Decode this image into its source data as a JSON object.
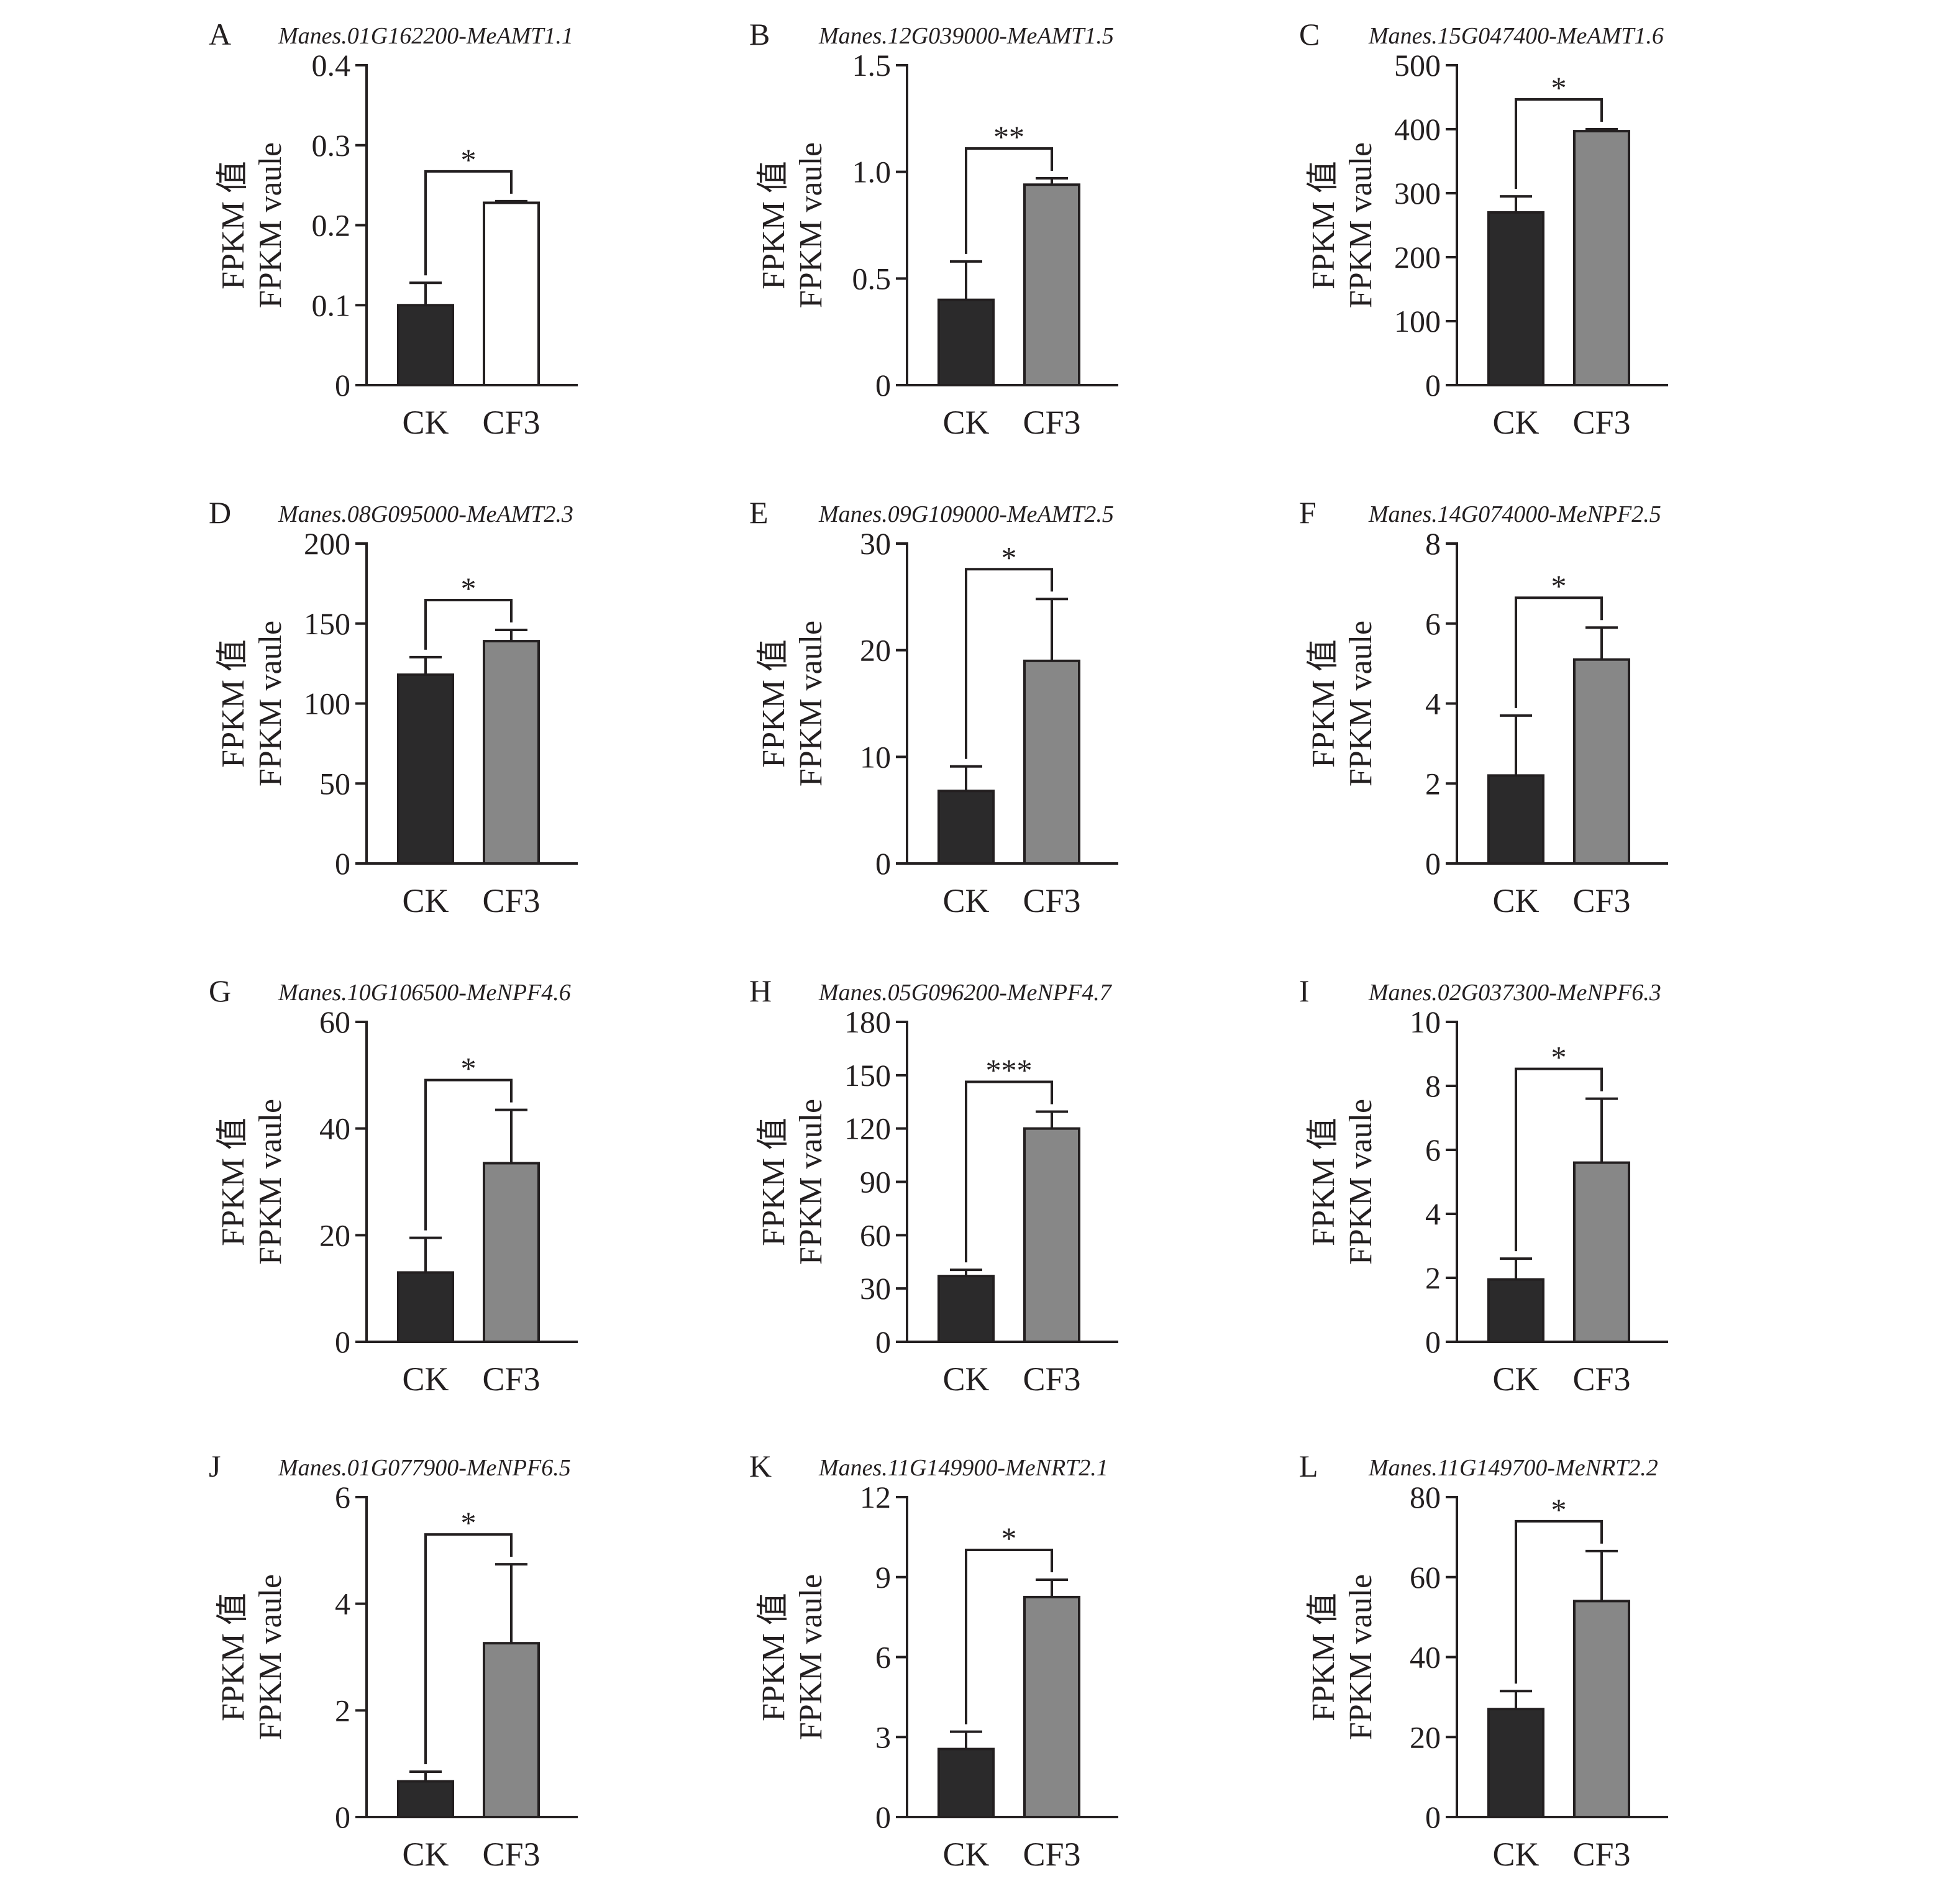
{
  "figure": {
    "y_label_line1": "FPKM 值",
    "y_label_line2": "FPKM vaule",
    "colors": {
      "ck": "#2b2a2b",
      "cf3": "#878787",
      "cf3_panel_a": "#ffffff",
      "axis": "#231f20"
    }
  },
  "chart_data": [
    {
      "panel": "A",
      "title": "Manes.01G162200-MeAMT1.1",
      "type": "bar",
      "categories": [
        "CK",
        "CF3"
      ],
      "values": [
        0.1,
        0.228
      ],
      "errors": [
        0.028,
        0.002
      ],
      "ylim": [
        0,
        0.4
      ],
      "yticks": [
        0,
        0.1,
        0.2,
        0.3,
        0.4
      ],
      "ytick_labels": [
        "0",
        "0.1",
        "0.2",
        "0.3",
        "0.4"
      ],
      "significance": "*"
    },
    {
      "panel": "B",
      "title": "Manes.12G039000-MeAMT1.5",
      "type": "bar",
      "categories": [
        "CK",
        "CF3"
      ],
      "values": [
        0.4,
        0.94
      ],
      "errors": [
        0.18,
        0.03
      ],
      "ylim": [
        0,
        1.5
      ],
      "yticks": [
        0,
        0.5,
        1.0,
        1.5
      ],
      "ytick_labels": [
        "0",
        "0.5",
        "1.0",
        "1.5"
      ],
      "significance": "**"
    },
    {
      "panel": "C",
      "title": "Manes.15G047400-MeAMT1.6",
      "type": "bar",
      "categories": [
        "CK",
        "CF3"
      ],
      "values": [
        270,
        397
      ],
      "errors": [
        25,
        3
      ],
      "ylim": [
        0,
        500
      ],
      "yticks": [
        0,
        100,
        200,
        300,
        400,
        500
      ],
      "ytick_labels": [
        "0",
        "100",
        "200",
        "300",
        "400",
        "500"
      ],
      "significance": "*"
    },
    {
      "panel": "D",
      "title": "Manes.08G095000-MeAMT2.3",
      "type": "bar",
      "categories": [
        "CK",
        "CF3"
      ],
      "values": [
        118,
        139
      ],
      "errors": [
        11,
        7
      ],
      "ylim": [
        0,
        200
      ],
      "yticks": [
        0,
        50,
        100,
        150,
        200
      ],
      "ytick_labels": [
        "0",
        "50",
        "100",
        "150",
        "200"
      ],
      "significance": "*"
    },
    {
      "panel": "E",
      "title": "Manes.09G109000-MeAMT2.5",
      "type": "bar",
      "categories": [
        "CK",
        "CF3"
      ],
      "values": [
        6.8,
        19
      ],
      "errors": [
        2.3,
        5.8
      ],
      "ylim": [
        0,
        30
      ],
      "yticks": [
        0,
        10,
        20,
        30
      ],
      "ytick_labels": [
        "0",
        "10",
        "20",
        "30"
      ],
      "significance": "*"
    },
    {
      "panel": "F",
      "title": "Manes.14G074000-MeNPF2.5",
      "type": "bar",
      "categories": [
        "CK",
        "CF3"
      ],
      "values": [
        2.2,
        5.1
      ],
      "errors": [
        1.5,
        0.8
      ],
      "ylim": [
        0,
        8
      ],
      "yticks": [
        0,
        2,
        4,
        6,
        8
      ],
      "ytick_labels": [
        "0",
        "2",
        "4",
        "6",
        "8"
      ],
      "significance": "*"
    },
    {
      "panel": "G",
      "title": "Manes.10G106500-MeNPF4.6",
      "type": "bar",
      "categories": [
        "CK",
        "CF3"
      ],
      "values": [
        13,
        33.5
      ],
      "errors": [
        6.5,
        10
      ],
      "ylim": [
        0,
        60
      ],
      "yticks": [
        0,
        20,
        40,
        60
      ],
      "ytick_labels": [
        "0",
        "20",
        "40",
        "60"
      ],
      "significance": "*"
    },
    {
      "panel": "H",
      "title": "Manes.05G096200-MeNPF4.7",
      "type": "bar",
      "categories": [
        "CK",
        "CF3"
      ],
      "values": [
        37,
        120
      ],
      "errors": [
        3.5,
        9.5
      ],
      "ylim": [
        0,
        180
      ],
      "yticks": [
        0,
        30,
        60,
        90,
        120,
        150,
        180
      ],
      "ytick_labels": [
        "0",
        "30",
        "60",
        "90",
        "120",
        "150",
        "180"
      ],
      "significance": "***"
    },
    {
      "panel": "I",
      "title": "Manes.02G037300-MeNPF6.3",
      "type": "bar",
      "categories": [
        "CK",
        "CF3"
      ],
      "values": [
        1.95,
        5.6
      ],
      "errors": [
        0.65,
        2.0
      ],
      "ylim": [
        0,
        10
      ],
      "yticks": [
        0,
        2,
        4,
        6,
        8,
        10
      ],
      "ytick_labels": [
        "0",
        "2",
        "4",
        "6",
        "8",
        "10"
      ],
      "significance": "*"
    },
    {
      "panel": "J",
      "title": "Manes.01G077900-MeNPF6.5",
      "type": "bar",
      "categories": [
        "CK",
        "CF3"
      ],
      "values": [
        0.67,
        3.26
      ],
      "errors": [
        0.18,
        1.48
      ],
      "ylim": [
        0,
        6
      ],
      "yticks": [
        0,
        2,
        4,
        6
      ],
      "ytick_labels": [
        "0",
        "2",
        "4",
        "6"
      ],
      "significance": "*"
    },
    {
      "panel": "K",
      "title": "Manes.11G149900-MeNRT2.1",
      "type": "bar",
      "categories": [
        "CK",
        "CF3"
      ],
      "values": [
        2.55,
        8.25
      ],
      "errors": [
        0.65,
        0.65
      ],
      "ylim": [
        0,
        12
      ],
      "yticks": [
        0,
        3,
        6,
        9,
        12
      ],
      "ytick_labels": [
        "0",
        "3",
        "6",
        "9",
        "12"
      ],
      "significance": "*"
    },
    {
      "panel": "L",
      "title": "Manes.11G149700-MeNRT2.2",
      "type": "bar",
      "categories": [
        "CK",
        "CF3"
      ],
      "values": [
        27,
        54
      ],
      "errors": [
        4.5,
        12.5
      ],
      "ylim": [
        0,
        80
      ],
      "yticks": [
        0,
        20,
        40,
        60,
        80
      ],
      "ytick_labels": [
        "0",
        "20",
        "40",
        "60",
        "80"
      ],
      "significance": "*"
    }
  ]
}
